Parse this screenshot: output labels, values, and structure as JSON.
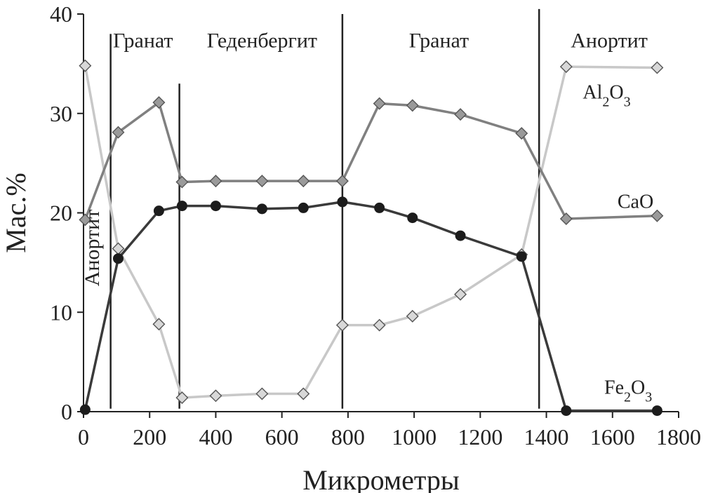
{
  "chart_data": {
    "type": "line",
    "xlabel": "Микрометры",
    "ylabel": "Мас.%",
    "xlim": [
      0,
      1800
    ],
    "ylim": [
      0,
      40
    ],
    "xticks": [
      0,
      200,
      400,
      600,
      800,
      1000,
      1200,
      1400,
      1600,
      1800
    ],
    "yticks": [
      0,
      10,
      20,
      30,
      40
    ],
    "grid": false,
    "boundaries": [
      82,
      290,
      783,
      1378
    ],
    "phase_labels": [
      {
        "text": "Гранат",
        "x": 180,
        "y": 37.2,
        "rotate": false
      },
      {
        "text": "Геденбергит",
        "x": 540,
        "y": 37.2,
        "rotate": false
      },
      {
        "text": "Гранат",
        "x": 1075,
        "y": 37.2,
        "rotate": false
      },
      {
        "text": "Анортит",
        "x": 1590,
        "y": 37.2,
        "rotate": false
      },
      {
        "text": "Анортит",
        "x": 45,
        "y": 20,
        "rotate": true
      }
    ],
    "series": [
      {
        "name": "Al2O3",
        "label_main": "Al",
        "label_sub1": "2",
        "label_mid": "O",
        "label_sub2": "3",
        "label_x": 1510,
        "label_y": 31.5,
        "color": "#c8c8c8",
        "marker": "diamond",
        "x": [
          5,
          105,
          228,
          298,
          400,
          540,
          665,
          783,
          895,
          995,
          1140,
          1325,
          1460,
          1735
        ],
        "y": [
          34.8,
          16.4,
          8.8,
          1.4,
          1.6,
          1.8,
          1.8,
          8.7,
          8.7,
          9.6,
          11.8,
          15.8,
          34.7,
          34.6
        ]
      },
      {
        "name": "CaO",
        "label_main": "CaO",
        "label_x": 1615,
        "label_y": 20.5,
        "color": "#808080",
        "marker": "diamond",
        "x": [
          5,
          105,
          228,
          298,
          400,
          540,
          665,
          783,
          895,
          995,
          1140,
          1325,
          1460,
          1735
        ],
        "y": [
          19.3,
          28.1,
          31.1,
          23.1,
          23.2,
          23.2,
          23.2,
          23.2,
          31.0,
          30.8,
          29.9,
          28.0,
          19.4,
          19.7
        ]
      },
      {
        "name": "Fe2O3",
        "label_main": "Fe",
        "label_sub1": "2",
        "label_mid": "O",
        "label_sub2": "3",
        "label_x": 1575,
        "label_y": 1.8,
        "color": "#3a3a3a",
        "marker": "circle",
        "x": [
          5,
          105,
          228,
          298,
          400,
          540,
          665,
          783,
          895,
          995,
          1140,
          1325,
          1460,
          1735
        ],
        "y": [
          0.2,
          15.4,
          20.2,
          20.7,
          20.7,
          20.4,
          20.5,
          21.1,
          20.5,
          19.5,
          17.7,
          15.6,
          0.1,
          0.1
        ]
      }
    ]
  }
}
